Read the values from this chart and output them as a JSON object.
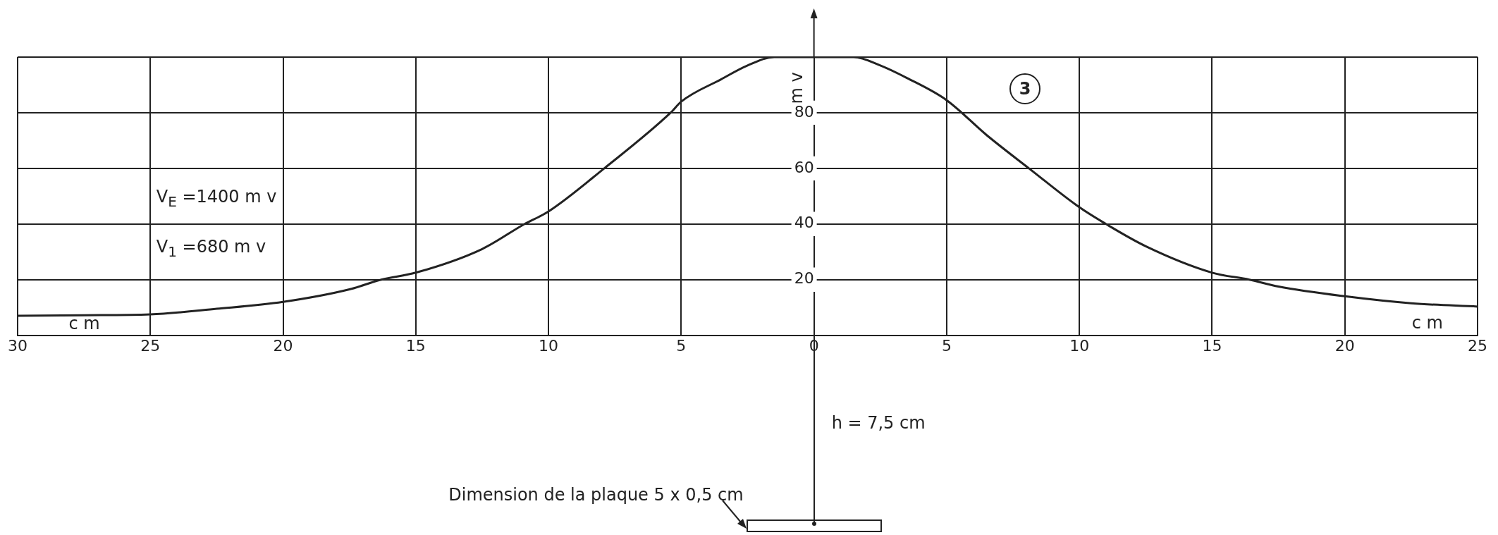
{
  "chart_data": {
    "type": "line",
    "x": [
      -30,
      -27.5,
      -25,
      -22.5,
      -20,
      -17.5,
      -16.3,
      -15,
      -12.5,
      -10.9,
      -10,
      -7.9,
      -5.4,
      -5,
      -3.5,
      -2.5,
      -1.5,
      0,
      1.5,
      2.5,
      3.5,
      5,
      6.5,
      8.1,
      10,
      11,
      12.5,
      15,
      16.4,
      17.5,
      20,
      22.5,
      25
    ],
    "values": [
      7,
      7.2,
      7.5,
      9.5,
      12,
      16.5,
      20,
      22.5,
      31,
      40,
      44.5,
      60,
      80,
      84,
      92,
      97,
      100,
      100,
      100,
      97,
      92.5,
      84.5,
      72,
      60,
      46,
      40,
      32,
      22.5,
      20,
      17.5,
      14,
      11.5,
      10.3
    ],
    "color": "#222222",
    "xlim": [
      -30,
      25
    ],
    "xticks": [
      {
        "value": -30,
        "label": "30"
      },
      {
        "value": -25,
        "label": "25"
      },
      {
        "value": -20,
        "label": "20"
      },
      {
        "value": -15,
        "label": "15"
      },
      {
        "value": -10,
        "label": "10"
      },
      {
        "value": -5,
        "label": "5"
      },
      0,
      5,
      10,
      15,
      20,
      25
    ],
    "ylim": [
      0,
      100
    ],
    "yticks": [
      {
        "value": 0,
        "label": null
      },
      20,
      40,
      60,
      80,
      {
        "value": 100,
        "label": null
      }
    ],
    "xlabel": "c m",
    "ylabel": "m v",
    "annotations": [
      "V$_{E}$ =1400 m v",
      "V$_{1}$ =680 m v",
      "c m",
      "3",
      "h = 7,5 cm",
      "Dimension de la plaque 5 x 0,5 cm"
    ],
    "grid": true,
    "marker": "none",
    "line_style": "solid"
  }
}
